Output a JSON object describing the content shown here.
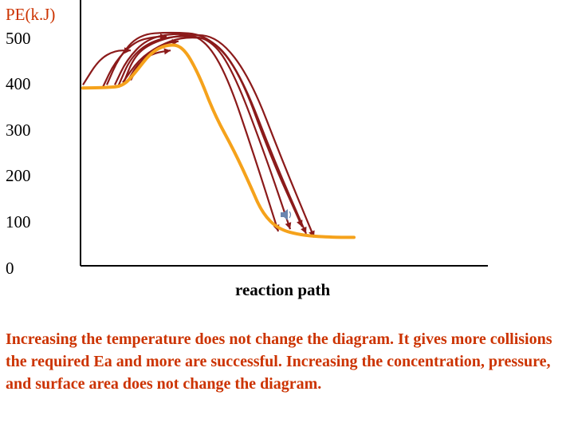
{
  "chart_data": {
    "type": "line",
    "title": "",
    "ylabel": "PE(k.J)",
    "xlabel": "reaction path",
    "yticks": [
      "500",
      "400",
      "300",
      "200",
      "100",
      "0"
    ],
    "ylim": [
      0,
      500
    ],
    "series": [
      {
        "role": "energy profile",
        "color": "#f5a21b",
        "values": [
          {
            "path": 0.0,
            "pe": 388
          },
          {
            "path": 0.06,
            "pe": 389
          },
          {
            "path": 0.1,
            "pe": 392
          },
          {
            "path": 0.13,
            "pe": 420
          },
          {
            "path": 0.17,
            "pe": 465
          },
          {
            "path": 0.21,
            "pe": 483
          },
          {
            "path": 0.25,
            "pe": 480
          },
          {
            "path": 0.29,
            "pe": 420
          },
          {
            "path": 0.33,
            "pe": 330
          },
          {
            "path": 0.38,
            "pe": 250
          },
          {
            "path": 0.42,
            "pe": 175
          },
          {
            "path": 0.45,
            "pe": 115
          },
          {
            "path": 0.49,
            "pe": 80
          },
          {
            "path": 0.55,
            "pe": 66
          },
          {
            "path": 0.63,
            "pe": 62
          },
          {
            "path": 0.68,
            "pe": 62
          }
        ]
      }
    ],
    "collision_arrows": {
      "color": "#8b1a1a",
      "count": 9,
      "description_none": true,
      "peaks": [
        [
          [
            0.0,
            395
          ],
          [
            0.04,
            450
          ],
          [
            0.08,
            470
          ],
          [
            0.12,
            470
          ]
        ],
        [
          [
            0.06,
            395
          ],
          [
            0.09,
            455
          ],
          [
            0.14,
            505
          ],
          [
            0.22,
            510
          ],
          [
            0.31,
            505
          ],
          [
            0.39,
            430
          ],
          [
            0.47,
            240
          ],
          [
            0.55,
            85
          ]
        ],
        [
          [
            0.08,
            395
          ],
          [
            0.11,
            450
          ],
          [
            0.16,
            495
          ],
          [
            0.23,
            508
          ],
          [
            0.3,
            500
          ],
          [
            0.36,
            420
          ],
          [
            0.43,
            240
          ],
          [
            0.49,
            75
          ]
        ],
        [
          [
            0.09,
            395
          ],
          [
            0.12,
            455
          ],
          [
            0.17,
            490
          ],
          [
            0.24,
            503
          ],
          [
            0.32,
            497
          ],
          [
            0.38,
            420
          ],
          [
            0.46,
            235
          ],
          [
            0.52,
            80
          ]
        ],
        [
          [
            0.1,
            395
          ],
          [
            0.13,
            460
          ],
          [
            0.18,
            490
          ],
          [
            0.26,
            506
          ],
          [
            0.34,
            500
          ],
          [
            0.42,
            410
          ],
          [
            0.5,
            230
          ],
          [
            0.58,
            62
          ]
        ],
        [
          [
            0.1,
            400
          ],
          [
            0.14,
            450
          ],
          [
            0.19,
            480
          ],
          [
            0.25,
            500
          ],
          [
            0.33,
            495
          ],
          [
            0.4,
            410
          ],
          [
            0.48,
            230
          ],
          [
            0.56,
            70
          ]
        ],
        [
          [
            0.11,
            400
          ],
          [
            0.14,
            445
          ],
          [
            0.18,
            465
          ],
          [
            0.22,
            470
          ]
        ],
        [
          [
            0.12,
            405
          ],
          [
            0.15,
            455
          ],
          [
            0.2,
            485
          ],
          [
            0.24,
            490
          ]
        ],
        [
          [
            0.05,
            390
          ],
          [
            0.08,
            445
          ],
          [
            0.13,
            490
          ],
          [
            0.18,
            500
          ],
          [
            0.21,
            500
          ]
        ]
      ]
    }
  },
  "caption": "Increasing the temperature does not change the diagram. It gives more collisions the required Ea and more are successful. Increasing the concentration, pressure, and surface area does not change the diagram."
}
